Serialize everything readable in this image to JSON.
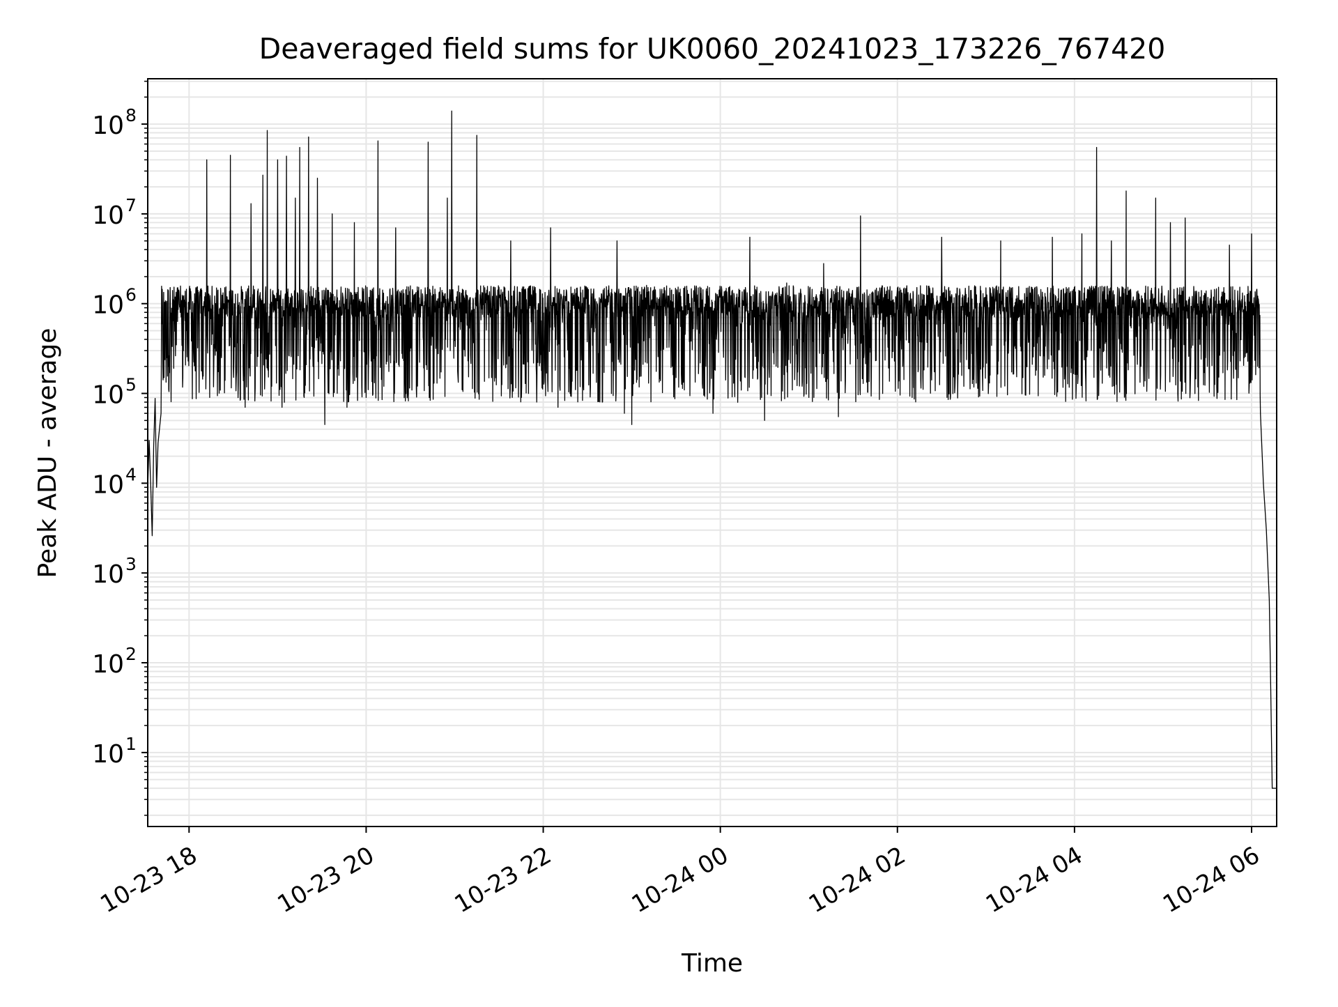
{
  "chart_data": {
    "type": "line",
    "title": "Deaveraged field sums for UK0060_20241023_173226_767420",
    "xlabel": "Time",
    "ylabel": "Peak ADU - average",
    "y_scale": "log",
    "ylim": [
      1.5,
      320000000
    ],
    "xlim": [
      "2024-10-23 17:32",
      "2024-10-24 06:17"
    ],
    "grid": true,
    "line_color": "#000000",
    "grid_color": "#e6e6e6",
    "x_ticks": [
      {
        "value": "2024-10-23 18:00",
        "label": "10-23 18"
      },
      {
        "value": "2024-10-23 20:00",
        "label": "10-23 20"
      },
      {
        "value": "2024-10-23 22:00",
        "label": "10-23 22"
      },
      {
        "value": "2024-10-24 00:00",
        "label": "10-24 00"
      },
      {
        "value": "2024-10-24 02:00",
        "label": "10-24 02"
      },
      {
        "value": "2024-10-24 04:00",
        "label": "10-24 04"
      },
      {
        "value": "2024-10-24 06:00",
        "label": "10-24 06"
      }
    ],
    "y_ticks": [
      {
        "value": 10,
        "mantissa": "10",
        "exp": "1"
      },
      {
        "value": 100,
        "mantissa": "10",
        "exp": "2"
      },
      {
        "value": 1000,
        "mantissa": "10",
        "exp": "3"
      },
      {
        "value": 10000,
        "mantissa": "10",
        "exp": "4"
      },
      {
        "value": 100000,
        "mantissa": "10",
        "exp": "5"
      },
      {
        "value": 1000000,
        "mantissa": "10",
        "exp": "6"
      },
      {
        "value": 10000000,
        "mantissa": "10",
        "exp": "7"
      },
      {
        "value": 100000000,
        "mantissa": "10",
        "exp": "8"
      }
    ],
    "series": [
      {
        "points": [
          [
            "2024-10-23 17:32",
            9000
          ],
          [
            "2024-10-23 17:33",
            30000
          ],
          [
            "2024-10-23 17:34",
            10000
          ],
          [
            "2024-10-23 17:35",
            2600
          ],
          [
            "2024-10-23 17:36",
            25000
          ],
          [
            "2024-10-23 17:37",
            88000
          ],
          [
            "2024-10-23 17:38",
            9000
          ],
          [
            "2024-10-23 17:39",
            28000
          ],
          [
            "2024-10-23 17:41",
            60000
          ],
          [
            "2024-10-23 17:43",
            150000
          ],
          [
            "2024-10-23 17:45",
            250000
          ],
          [
            "2024-10-23 17:48",
            380000
          ],
          [
            "2024-10-23 17:50",
            600000
          ],
          [
            "2024-10-23 17:52",
            1500000
          ],
          [
            "2024-10-23 17:54",
            800000
          ],
          [
            "2024-10-23 17:56",
            1200000
          ],
          [
            "2024-10-23 17:58",
            500000
          ],
          [
            "2024-10-23 18:00",
            900000
          ],
          [
            "2024-10-23 18:03",
            300000
          ],
          [
            "2024-10-23 18:06",
            1400000
          ],
          [
            "2024-10-23 18:09",
            170000
          ],
          [
            "2024-10-23 18:12",
            40000000
          ],
          [
            "2024-10-23 18:14",
            90000
          ],
          [
            "2024-10-23 18:18",
            1000000
          ],
          [
            "2024-10-23 18:22",
            250000
          ],
          [
            "2024-10-23 18:28",
            45000000
          ],
          [
            "2024-10-23 18:32",
            150000
          ],
          [
            "2024-10-23 18:38",
            70000
          ],
          [
            "2024-10-23 18:42",
            13000000
          ],
          [
            "2024-10-23 18:46",
            200000
          ],
          [
            "2024-10-23 18:50",
            27000000
          ],
          [
            "2024-10-23 18:53",
            85000000
          ],
          [
            "2024-10-23 18:56",
            120000
          ],
          [
            "2024-10-23 19:00",
            40000000
          ],
          [
            "2024-10-23 19:03",
            70000
          ],
          [
            "2024-10-23 19:06",
            44000000
          ],
          [
            "2024-10-23 19:09",
            300000
          ],
          [
            "2024-10-23 19:12",
            15000000
          ],
          [
            "2024-10-23 19:15",
            55000000
          ],
          [
            "2024-10-23 19:18",
            90000
          ],
          [
            "2024-10-23 19:21",
            72000000
          ],
          [
            "2024-10-23 19:24",
            200000
          ],
          [
            "2024-10-23 19:27",
            25000000
          ],
          [
            "2024-10-23 19:32",
            45000
          ],
          [
            "2024-10-23 19:37",
            10000000
          ],
          [
            "2024-10-23 19:42",
            700000
          ],
          [
            "2024-10-23 19:47",
            70000
          ],
          [
            "2024-10-23 19:52",
            8000000
          ],
          [
            "2024-10-23 20:00",
            90000
          ],
          [
            "2024-10-23 20:05",
            1500000
          ],
          [
            "2024-10-23 20:08",
            65000000
          ],
          [
            "2024-10-23 20:12",
            120000
          ],
          [
            "2024-10-23 20:20",
            7000000
          ],
          [
            "2024-10-23 20:28",
            100000
          ],
          [
            "2024-10-23 20:40",
            1500000
          ],
          [
            "2024-10-23 20:42",
            63000000
          ],
          [
            "2024-10-23 20:48",
            130000
          ],
          [
            "2024-10-23 20:55",
            15000000
          ],
          [
            "2024-10-23 20:57",
            300000
          ],
          [
            "2024-10-23 20:58",
            140000000
          ],
          [
            "2024-10-23 21:05",
            110000
          ],
          [
            "2024-10-23 21:15",
            75000000
          ],
          [
            "2024-10-23 21:25",
            150000
          ],
          [
            "2024-10-23 21:38",
            5000000
          ],
          [
            "2024-10-23 21:50",
            100000
          ],
          [
            "2024-10-23 21:55",
            1300000
          ],
          [
            "2024-10-23 22:00",
            300000
          ],
          [
            "2024-10-23 22:05",
            7000000
          ],
          [
            "2024-10-23 22:10",
            70000
          ],
          [
            "2024-10-23 22:30",
            1500000
          ],
          [
            "2024-10-23 22:40",
            80000
          ],
          [
            "2024-10-23 22:50",
            5000000
          ],
          [
            "2024-10-23 22:55",
            60000
          ],
          [
            "2024-10-23 23:00",
            45000
          ],
          [
            "2024-10-23 23:10",
            1600000
          ],
          [
            "2024-10-23 23:30",
            150000
          ],
          [
            "2024-10-23 23:45",
            1500000
          ],
          [
            "2024-10-23 23:55",
            60000
          ],
          [
            "2024-10-24 00:00",
            1400000
          ],
          [
            "2024-10-24 00:20",
            5500000
          ],
          [
            "2024-10-24 00:30",
            50000
          ],
          [
            "2024-10-24 00:45",
            1700000
          ],
          [
            "2024-10-24 01:00",
            90000
          ],
          [
            "2024-10-24 01:10",
            2800000
          ],
          [
            "2024-10-24 01:20",
            55000
          ],
          [
            "2024-10-24 01:35",
            9500000
          ],
          [
            "2024-10-24 01:50",
            100000
          ],
          [
            "2024-10-24 02:00",
            1500000
          ],
          [
            "2024-10-24 02:10",
            90000
          ],
          [
            "2024-10-24 02:30",
            5500000
          ],
          [
            "2024-10-24 02:45",
            120000
          ],
          [
            "2024-10-24 03:00",
            1500000
          ],
          [
            "2024-10-24 03:10",
            5000000
          ],
          [
            "2024-10-24 03:25",
            150000
          ],
          [
            "2024-10-24 03:45",
            5500000
          ],
          [
            "2024-10-24 03:55",
            200000
          ],
          [
            "2024-10-24 04:05",
            6000000
          ],
          [
            "2024-10-24 04:15",
            55000000
          ],
          [
            "2024-10-24 04:20",
            300000
          ],
          [
            "2024-10-24 04:25",
            5000000
          ],
          [
            "2024-10-24 04:35",
            18000000
          ],
          [
            "2024-10-24 04:45",
            200000
          ],
          [
            "2024-10-24 04:55",
            15000000
          ],
          [
            "2024-10-24 05:05",
            8000000
          ],
          [
            "2024-10-24 05:15",
            9000000
          ],
          [
            "2024-10-24 05:30",
            200000
          ],
          [
            "2024-10-24 05:45",
            4500000
          ],
          [
            "2024-10-24 05:55",
            250000
          ],
          [
            "2024-10-24 06:00",
            6000000
          ],
          [
            "2024-10-24 06:02",
            900000
          ],
          [
            "2024-10-24 06:03",
            600000
          ],
          [
            "2024-10-24 06:04",
            200000
          ],
          [
            "2024-10-24 06:06",
            60000
          ],
          [
            "2024-10-24 06:08",
            10000
          ],
          [
            "2024-10-24 06:10",
            3000
          ],
          [
            "2024-10-24 06:12",
            500
          ],
          [
            "2024-10-24 06:13",
            50
          ],
          [
            "2024-10-24 06:14",
            4
          ],
          [
            "2024-10-24 06:17",
            4
          ]
        ]
      }
    ]
  }
}
